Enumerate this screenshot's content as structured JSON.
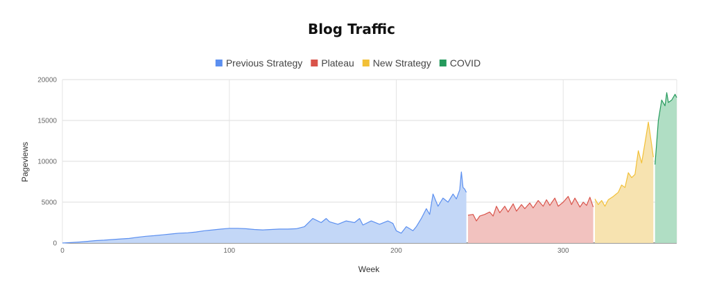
{
  "chart_data": {
    "type": "area",
    "title": "Blog Traffic",
    "xlabel": "Week",
    "ylabel": "Pageviews",
    "xlim": [
      0,
      368
    ],
    "ylim": [
      0,
      20000
    ],
    "x_ticks": [
      0,
      100,
      200,
      300
    ],
    "y_ticks": [
      0,
      5000,
      10000,
      15000,
      20000
    ],
    "grid": true,
    "legend_position": "top",
    "series": [
      {
        "name": "Previous Strategy",
        "color": "#5b8ff0",
        "fill": "#c3d7f7",
        "points": [
          [
            0,
            0
          ],
          [
            5,
            50
          ],
          [
            10,
            120
          ],
          [
            15,
            200
          ],
          [
            20,
            300
          ],
          [
            25,
            350
          ],
          [
            30,
            420
          ],
          [
            35,
            500
          ],
          [
            40,
            560
          ],
          [
            45,
            700
          ],
          [
            50,
            820
          ],
          [
            55,
            900
          ],
          [
            60,
            1000
          ],
          [
            65,
            1100
          ],
          [
            70,
            1200
          ],
          [
            75,
            1250
          ],
          [
            80,
            1350
          ],
          [
            85,
            1500
          ],
          [
            90,
            1600
          ],
          [
            95,
            1700
          ],
          [
            100,
            1800
          ],
          [
            105,
            1800
          ],
          [
            110,
            1750
          ],
          [
            115,
            1650
          ],
          [
            120,
            1600
          ],
          [
            125,
            1650
          ],
          [
            130,
            1700
          ],
          [
            135,
            1700
          ],
          [
            140,
            1750
          ],
          [
            145,
            2000
          ],
          [
            148,
            2600
          ],
          [
            150,
            3000
          ],
          [
            155,
            2500
          ],
          [
            158,
            3000
          ],
          [
            160,
            2600
          ],
          [
            165,
            2300
          ],
          [
            170,
            2700
          ],
          [
            175,
            2500
          ],
          [
            178,
            3000
          ],
          [
            180,
            2200
          ],
          [
            185,
            2700
          ],
          [
            190,
            2300
          ],
          [
            195,
            2700
          ],
          [
            198,
            2400
          ],
          [
            200,
            1500
          ],
          [
            203,
            1200
          ],
          [
            206,
            2000
          ],
          [
            210,
            1500
          ],
          [
            212,
            2000
          ],
          [
            215,
            3000
          ],
          [
            218,
            4200
          ],
          [
            220,
            3500
          ],
          [
            222,
            6000
          ],
          [
            225,
            4500
          ],
          [
            228,
            5500
          ],
          [
            231,
            5000
          ],
          [
            234,
            6000
          ],
          [
            236,
            5400
          ],
          [
            238,
            6500
          ],
          [
            239,
            8700
          ],
          [
            240,
            6800
          ],
          [
            241,
            6600
          ],
          [
            242,
            6200
          ]
        ]
      },
      {
        "name": "Plateau",
        "color": "#d9534a",
        "fill": "#f2c2bf",
        "points": [
          [
            243,
            3400
          ],
          [
            246,
            3500
          ],
          [
            248,
            2700
          ],
          [
            250,
            3300
          ],
          [
            253,
            3500
          ],
          [
            256,
            3800
          ],
          [
            258,
            3300
          ],
          [
            260,
            4500
          ],
          [
            262,
            3700
          ],
          [
            265,
            4500
          ],
          [
            267,
            3800
          ],
          [
            270,
            4800
          ],
          [
            272,
            3900
          ],
          [
            275,
            4700
          ],
          [
            277,
            4200
          ],
          [
            280,
            4900
          ],
          [
            282,
            4300
          ],
          [
            285,
            5200
          ],
          [
            288,
            4500
          ],
          [
            290,
            5300
          ],
          [
            292,
            4600
          ],
          [
            295,
            5500
          ],
          [
            297,
            4500
          ],
          [
            300,
            5000
          ],
          [
            303,
            5700
          ],
          [
            305,
            4700
          ],
          [
            307,
            5500
          ],
          [
            310,
            4400
          ],
          [
            312,
            5000
          ],
          [
            314,
            4600
          ],
          [
            316,
            5600
          ],
          [
            318,
            4400
          ]
        ]
      },
      {
        "name": "New Strategy",
        "color": "#f2c037",
        "fill": "#f7e3b0",
        "points": [
          [
            319,
            5400
          ],
          [
            321,
            4700
          ],
          [
            323,
            5200
          ],
          [
            325,
            4500
          ],
          [
            327,
            5300
          ],
          [
            330,
            5700
          ],
          [
            333,
            6200
          ],
          [
            335,
            7100
          ],
          [
            337,
            6800
          ],
          [
            339,
            8600
          ],
          [
            341,
            8000
          ],
          [
            343,
            8400
          ],
          [
            345,
            11300
          ],
          [
            347,
            9800
          ],
          [
            349,
            12300
          ],
          [
            351,
            14800
          ],
          [
            353,
            12000
          ],
          [
            354,
            10500
          ]
        ]
      },
      {
        "name": "COVID",
        "color": "#259a5c",
        "fill": "#b0dec4",
        "points": [
          [
            355,
            9600
          ],
          [
            357,
            15000
          ],
          [
            359,
            17500
          ],
          [
            361,
            16800
          ],
          [
            362,
            18400
          ],
          [
            363,
            17200
          ],
          [
            365,
            17500
          ],
          [
            367,
            18200
          ],
          [
            368,
            17800
          ]
        ]
      }
    ]
  }
}
